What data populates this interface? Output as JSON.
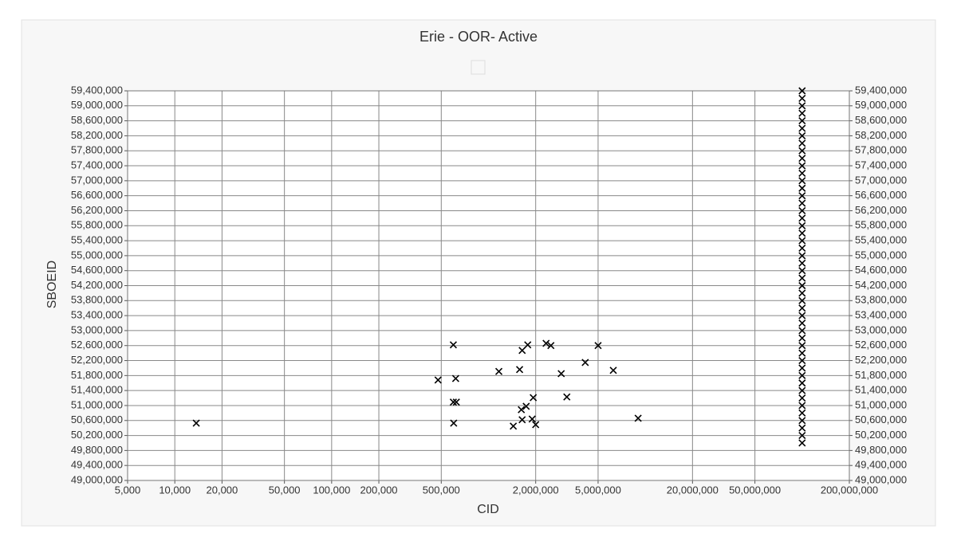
{
  "chart_data": {
    "type": "scatter",
    "title": "Erie - OOR- Active",
    "xlabel": "CID",
    "ylabel": "SBOEID",
    "x_scale": "log",
    "grid": true,
    "color": "#000000",
    "xlim": [
      5000,
      200000000
    ],
    "ylim": [
      49000000,
      59400000
    ],
    "xticks": [
      {
        "value": 5000,
        "label": "5,000"
      },
      {
        "value": 10000,
        "label": "10,000"
      },
      {
        "value": 20000,
        "label": "20,000"
      },
      {
        "value": 50000,
        "label": "50,000"
      },
      {
        "value": 100000,
        "label": "100,000"
      },
      {
        "value": 200000,
        "label": "200,000"
      },
      {
        "value": 500000,
        "label": "500,000"
      },
      {
        "value": 2000000,
        "label": "2,000,000"
      },
      {
        "value": 5000000,
        "label": "5,000,000"
      },
      {
        "value": 20000000,
        "label": "20,000,000"
      },
      {
        "value": 50000000,
        "label": "50,000,000"
      },
      {
        "value": 200000000,
        "label": "200,000,000"
      }
    ],
    "yticks": [
      {
        "value": 49000000,
        "label": "49,000,000"
      },
      {
        "value": 49400000,
        "label": "49,400,000"
      },
      {
        "value": 49800000,
        "label": "49,800,000"
      },
      {
        "value": 50200000,
        "label": "50,200,000"
      },
      {
        "value": 50600000,
        "label": "50,600,000"
      },
      {
        "value": 51000000,
        "label": "51,000,000"
      },
      {
        "value": 51400000,
        "label": "51,400,000"
      },
      {
        "value": 51800000,
        "label": "51,800,000"
      },
      {
        "value": 52200000,
        "label": "52,200,000"
      },
      {
        "value": 52600000,
        "label": "52,600,000"
      },
      {
        "value": 53000000,
        "label": "53,000,000"
      },
      {
        "value": 53400000,
        "label": "53,400,000"
      },
      {
        "value": 53800000,
        "label": "53,800,000"
      },
      {
        "value": 54200000,
        "label": "54,200,000"
      },
      {
        "value": 54600000,
        "label": "54,600,000"
      },
      {
        "value": 55000000,
        "label": "55,000,000"
      },
      {
        "value": 55400000,
        "label": "55,400,000"
      },
      {
        "value": 55800000,
        "label": "55,800,000"
      },
      {
        "value": 56200000,
        "label": "56,200,000"
      },
      {
        "value": 56600000,
        "label": "56,600,000"
      },
      {
        "value": 57000000,
        "label": "57,000,000"
      },
      {
        "value": 57400000,
        "label": "57,400,000"
      },
      {
        "value": 57800000,
        "label": "57,800,000"
      },
      {
        "value": 58200000,
        "label": "58,200,000"
      },
      {
        "value": 58600000,
        "label": "58,600,000"
      },
      {
        "value": 59000000,
        "label": "59,000,000"
      },
      {
        "value": 59400000,
        "label": "59,400,000"
      }
    ],
    "x": [
      13700,
      477000,
      597000,
      618000,
      597000,
      624000,
      600000,
      1165000,
      1580000,
      1640000,
      1780000,
      1620000,
      1740000,
      1640000,
      1440000,
      1930000,
      1900000,
      2000000,
      2330000,
      2500000,
      2910000,
      3160000,
      4140000,
      5000000,
      6250000,
      9000000,
      100000000,
      100000000,
      100000000,
      100000000,
      100000000,
      100000000,
      100000000,
      100000000,
      100000000,
      100000000,
      100000000,
      100000000,
      100000000,
      100000000,
      100000000,
      100000000,
      100000000,
      100000000,
      100000000,
      100000000,
      100000000,
      100000000,
      100000000,
      100000000,
      100000000,
      100000000,
      100000000,
      100000000,
      100000000,
      100000000,
      100000000,
      100000000,
      100000000,
      100000000,
      100000000,
      100000000,
      100000000,
      100000000,
      100000000,
      100000000,
      100000000,
      100000000,
      100000000,
      100000000,
      100000000,
      100000000,
      100000000,
      100000000
    ],
    "y": [
      50530000,
      51680000,
      52620000,
      51720000,
      51090000,
      51090000,
      50530000,
      51910000,
      51960000,
      52470000,
      52620000,
      50890000,
      50980000,
      50620000,
      50450000,
      51210000,
      50640000,
      50490000,
      52660000,
      52600000,
      51850000,
      51230000,
      52150000,
      52600000,
      51940000,
      50660000,
      50000000,
      50200000,
      50400000,
      50600000,
      50800000,
      51000000,
      51200000,
      51400000,
      51600000,
      51800000,
      52000000,
      52200000,
      52400000,
      52600000,
      52800000,
      53000000,
      53200000,
      53400000,
      53600000,
      53800000,
      54000000,
      54200000,
      54400000,
      54600000,
      54800000,
      55000000,
      55200000,
      55400000,
      55600000,
      55800000,
      56000000,
      56200000,
      56400000,
      56600000,
      56800000,
      57000000,
      57200000,
      57400000,
      57600000,
      57800000,
      58000000,
      58200000,
      58400000,
      58600000,
      58800000,
      59000000,
      59200000,
      59400000
    ]
  }
}
